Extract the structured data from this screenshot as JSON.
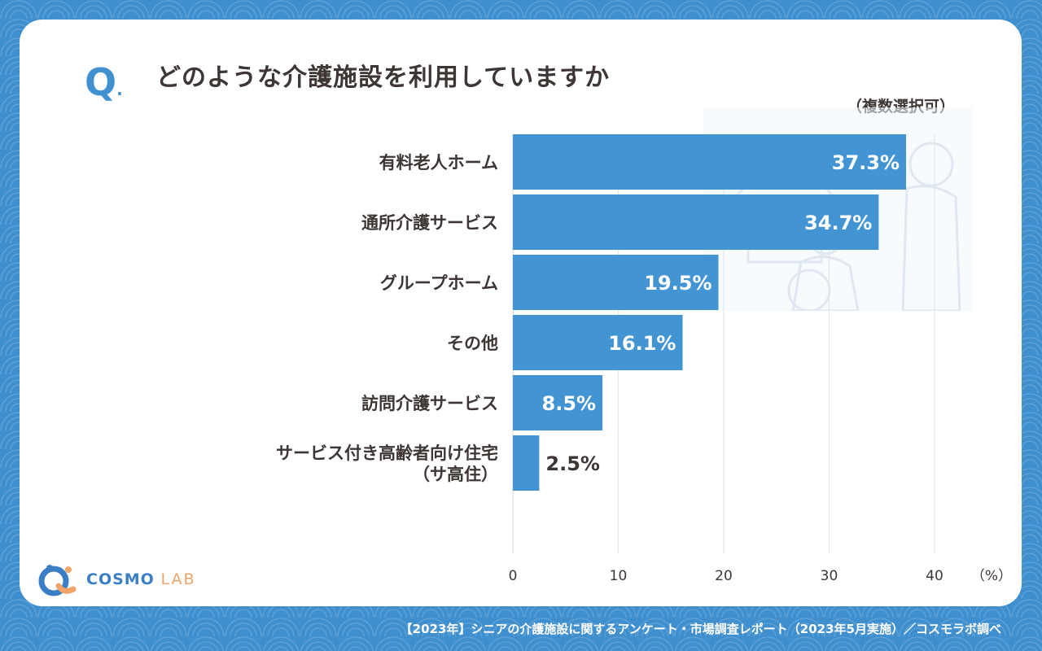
{
  "question": {
    "mark": "Q",
    "dot": ".",
    "text": "どのような介護施設を利用していますか",
    "note": "（複数選択可）"
  },
  "chart_data": {
    "type": "bar",
    "orientation": "horizontal",
    "categories": [
      "有料老人ホーム",
      "通所介護サービス",
      "グループホーム",
      "その他",
      "訪問介護サービス",
      "サービス付き高齢者向け住宅（サ高住）"
    ],
    "category_label_lines": [
      [
        "有料老人ホーム"
      ],
      [
        "通所介護サービス"
      ],
      [
        "グループホーム"
      ],
      [
        "その他"
      ],
      [
        "訪問介護サービス"
      ],
      [
        "サービス付き高齢者向け住宅",
        "（サ高住）"
      ]
    ],
    "values": [
      37.3,
      34.7,
      19.5,
      16.1,
      8.5,
      2.5
    ],
    "value_labels": [
      "37.3%",
      "34.7%",
      "19.5%",
      "16.1%",
      "8.5%",
      "2.5%"
    ],
    "xlim": [
      0,
      40
    ],
    "x_ticks": [
      0,
      10,
      20,
      30,
      40
    ],
    "x_unit": "（%）",
    "grid": "vertical",
    "bar_color": "#4294d2"
  },
  "branding": {
    "logo_main": "COSMO",
    "logo_sub": "LAB",
    "logo_icon": "cosmo-lab-logo-icon"
  },
  "footer": "【2023年】シニアの介護施設に関するアンケート・市場調査レポート（2023年5月実施）／コスモラボ調べ",
  "colors": {
    "background": "#3f8fcf",
    "card": "#ffffff",
    "accent": "#4191d0",
    "text": "#3d3634",
    "logo_accent": "#f0a46a"
  }
}
